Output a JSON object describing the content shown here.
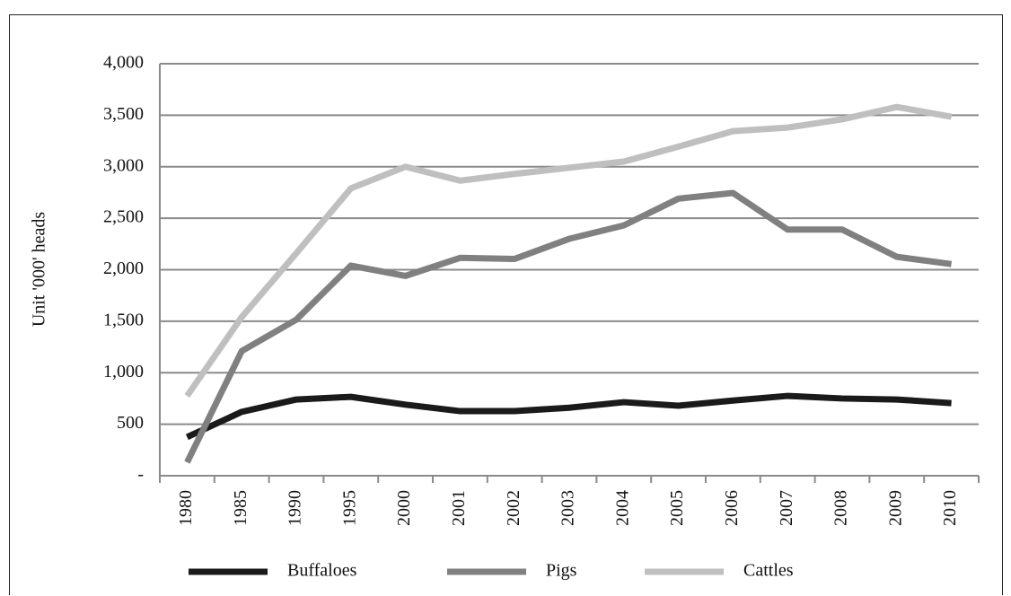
{
  "chart_data": {
    "type": "line",
    "y_label": "Unit '000' heads",
    "categories": [
      "1980",
      "1985",
      "1990",
      "1995",
      "2000",
      "2001",
      "2002",
      "2003",
      "2004",
      "2005",
      "2006",
      "2007",
      "2008",
      "2009",
      "2010"
    ],
    "series": [
      {
        "name": "Buffaloes",
        "color": "#1a1a1a",
        "values": [
          375,
          620,
          740,
          766,
          690,
          627,
          627,
          660,
          714,
          680,
          730,
          775,
          750,
          740,
          705
        ]
      },
      {
        "name": "Pigs",
        "color": "#808080",
        "values": [
          130,
          1210,
          1515,
          2040,
          1940,
          2115,
          2105,
          2300,
          2430,
          2690,
          2745,
          2390,
          2390,
          2125,
          2055
        ]
      },
      {
        "name": "Cattles",
        "color": "#bfbfbf",
        "values": [
          775,
          1540,
          2160,
          2790,
          3000,
          2865,
          2930,
          2990,
          3050,
          3195,
          3345,
          3380,
          3460,
          3580,
          3485
        ]
      }
    ],
    "ylim": [
      0,
      4000
    ],
    "yticks": [
      {
        "value": 0,
        "label": "-"
      },
      500,
      {
        "value": 1000,
        "label": "1,000"
      },
      {
        "value": 1500,
        "label": "1,500"
      },
      {
        "value": 2000,
        "label": "2,000"
      },
      {
        "value": 2500,
        "label": "2,500"
      },
      {
        "value": 3000,
        "label": "3,000"
      },
      {
        "value": 3500,
        "label": "3,500"
      },
      {
        "value": 4000,
        "label": "4,000"
      }
    ],
    "grid": true,
    "legend": "bottom"
  }
}
